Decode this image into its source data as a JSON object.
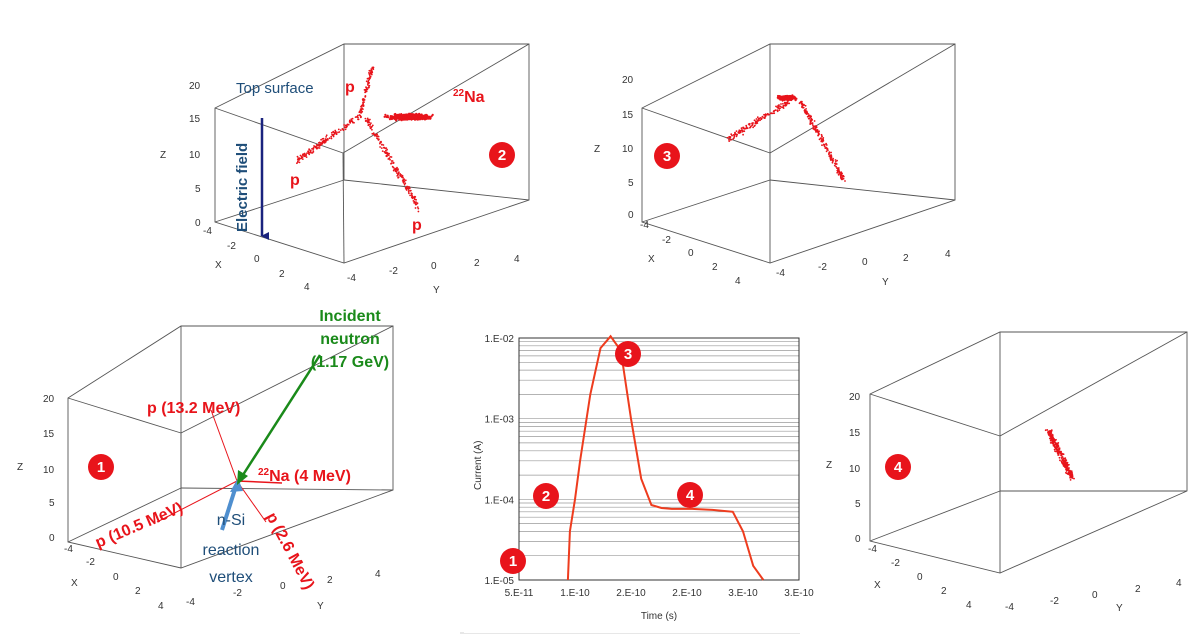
{
  "panels": {
    "p2": {
      "badge": "2",
      "top_label": "Top surface",
      "field_label": "Electric field",
      "labels": [
        "p",
        "p",
        "p"
      ],
      "na_mass": "22",
      "na_sym": "Na"
    },
    "p3": {
      "badge": "3"
    },
    "p1": {
      "badge": "1",
      "labels": [
        "p (13.2 MeV)",
        "p (10.5 MeV)",
        "p (2.6 MeV)"
      ],
      "na_mass": "22",
      "na_text": "Na (4 MeV)",
      "vertex_label": [
        "n-Si",
        "reaction",
        "vertex"
      ]
    },
    "p4": {
      "badge": "4"
    }
  },
  "axes3d": {
    "z_ticks": [
      "0",
      "5",
      "10",
      "15",
      "20"
    ],
    "x_ticks": [
      "-4",
      "-2",
      "0",
      "2",
      "4"
    ],
    "y_ticks": [
      "-4",
      "-2",
      "0",
      "2",
      "4"
    ],
    "x_name": "X",
    "y_name": "Y",
    "z_name": "Z"
  },
  "neutron_label": [
    "Incident",
    "neutron",
    "(1.17 GeV)"
  ],
  "current_plot": {
    "ylabel": "Current (A)",
    "xlabel": "Time (s)",
    "y_ticks": [
      "1.E-02",
      "1.E-03",
      "1.E-04",
      "1.E-05"
    ],
    "x_ticks": [
      "5.E-11",
      "1.E-10",
      "2.E-10",
      "2.E-10",
      "3.E-10",
      "3.E-10"
    ],
    "badges": [
      "1",
      "2",
      "3",
      "4"
    ]
  },
  "colors": {
    "accent_red": "#e8141b",
    "field_blue": "#1a237e",
    "neutron_green": "#1a8a1a",
    "arrow_blue": "#4f8fcf"
  },
  "chart_data": {
    "type": "line",
    "xlabel": "Time (s)",
    "ylabel": "Current (A)",
    "y_scale": "log",
    "ylim": [
      1e-05,
      0.01
    ],
    "x_tick_labels": [
      "5.E-11",
      "1.E-10",
      "2.E-10",
      "2.E-10",
      "3.E-10",
      "3.E-10"
    ],
    "grid": true,
    "series": [
      {
        "x": [
          9.8e-11,
          1e-10,
          1.05e-10,
          1.1e-10,
          1.2e-10,
          1.3e-10,
          1.4e-10,
          1.5e-10,
          1.6e-10,
          1.7e-10,
          1.8e-10,
          1.9e-10,
          2e-10,
          2.2e-10,
          2.4e-10,
          2.6e-10,
          2.7e-10,
          2.8e-10,
          2.9e-10
        ],
        "y": [
          1e-05,
          4e-05,
          0.0001,
          0.0003,
          0.002,
          0.0075,
          0.0105,
          0.007,
          0.001,
          0.00018,
          8.5e-05,
          7.8e-05,
          7.6e-05,
          7.6e-05,
          7.4e-05,
          7e-05,
          4e-05,
          1.5e-05,
          1e-05
        ]
      }
    ]
  }
}
